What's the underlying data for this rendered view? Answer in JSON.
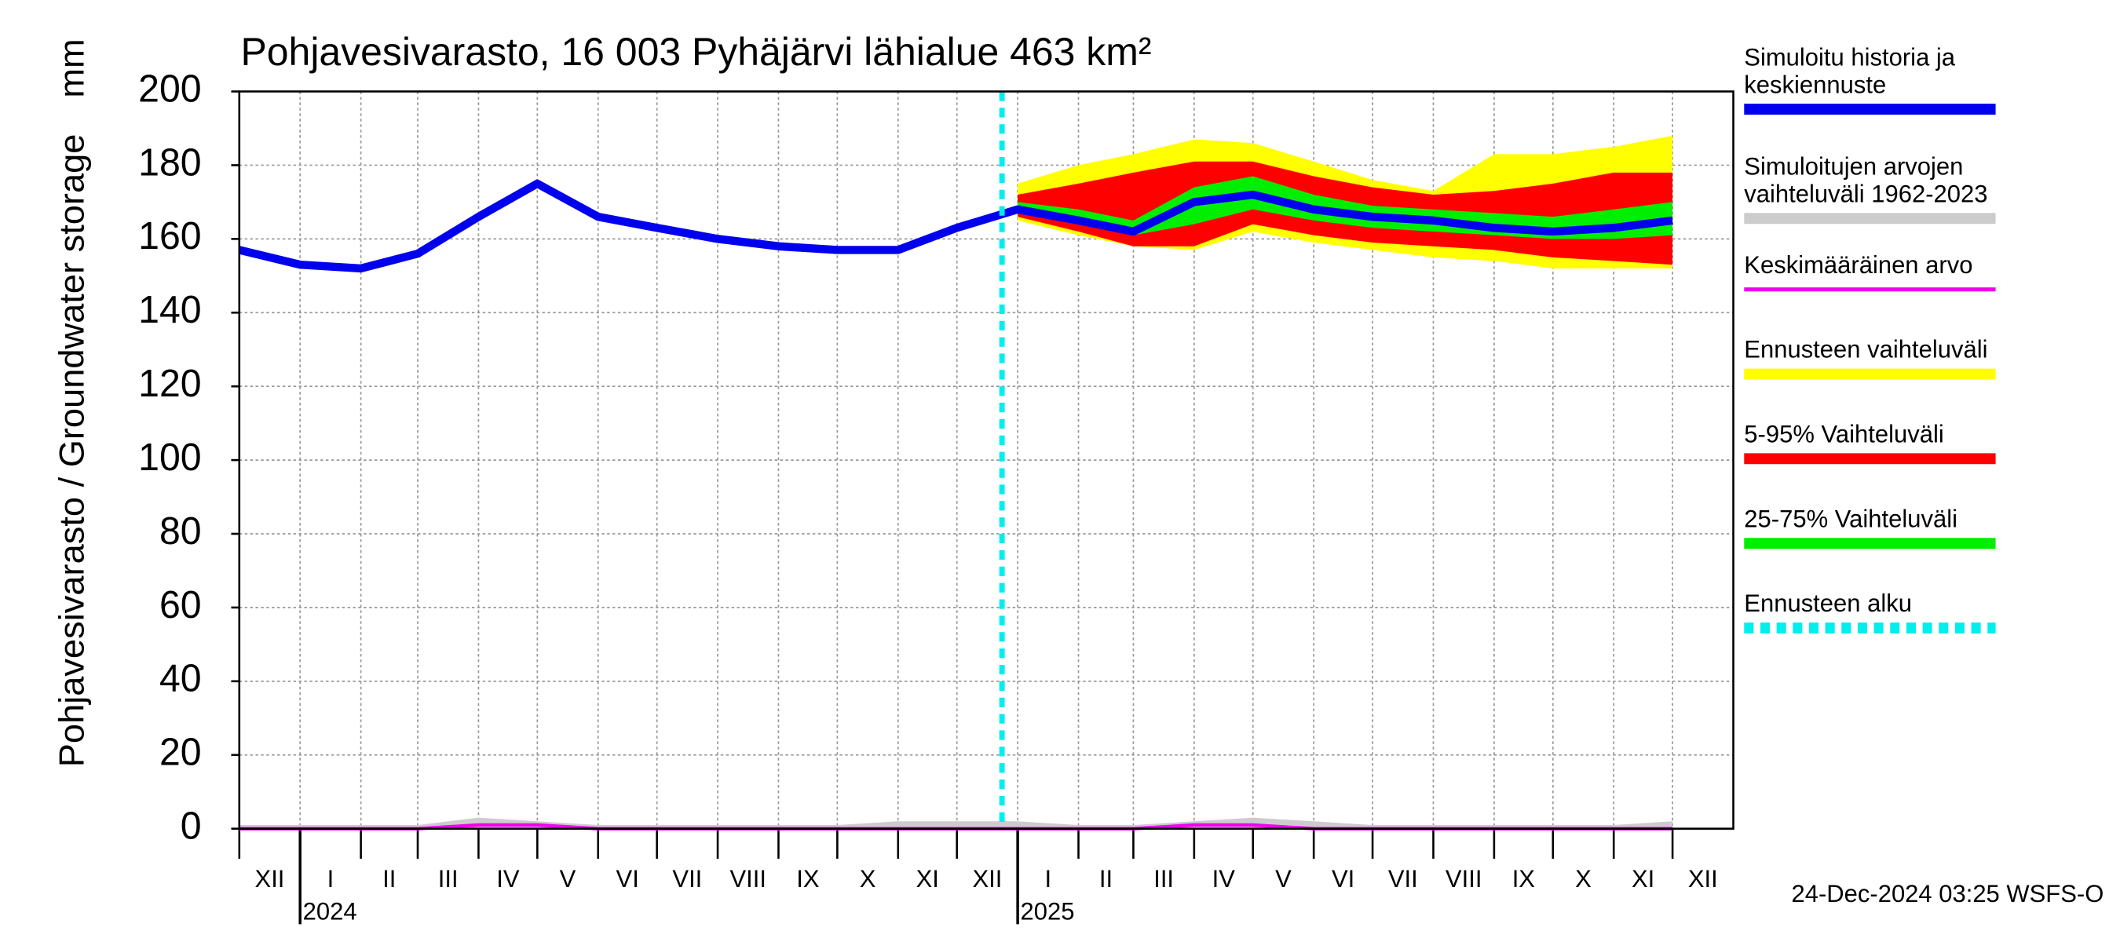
{
  "chart_data": {
    "type": "line",
    "title": "Pohjavesivarasto, 16 003 Pyhäjärvi lähialue 463 km²",
    "ylabel": "Pohjavesivarasto / Groundwater storage",
    "yunit": "mm",
    "footer": "24-Dec-2024 03:25 WSFS-O",
    "xlim": [
      "2023-12",
      "2026-01"
    ],
    "xticks": [
      {
        "value": "2023-12",
        "label": "XII"
      },
      {
        "value": "2024-01",
        "label": "I"
      },
      {
        "value": "2024-02",
        "label": "II"
      },
      {
        "value": "2024-03",
        "label": "III"
      },
      {
        "value": "2024-04",
        "label": "IV"
      },
      {
        "value": "2024-05",
        "label": "V"
      },
      {
        "value": "2024-06",
        "label": "VI"
      },
      {
        "value": "2024-07",
        "label": "VII"
      },
      {
        "value": "2024-08",
        "label": "VIII"
      },
      {
        "value": "2024-09",
        "label": "IX"
      },
      {
        "value": "2024-10",
        "label": "X"
      },
      {
        "value": "2024-11",
        "label": "XI"
      },
      {
        "value": "2024-12",
        "label": "XII"
      },
      {
        "value": "2025-01",
        "label": "I"
      },
      {
        "value": "2025-02",
        "label": "II"
      },
      {
        "value": "2025-03",
        "label": "III"
      },
      {
        "value": "2025-04",
        "label": "IV"
      },
      {
        "value": "2025-05",
        "label": "V"
      },
      {
        "value": "2025-06",
        "label": "VI"
      },
      {
        "value": "2025-07",
        "label": "VII"
      },
      {
        "value": "2025-08",
        "label": "VIII"
      },
      {
        "value": "2025-09",
        "label": "IX"
      },
      {
        "value": "2025-10",
        "label": "X"
      },
      {
        "value": "2025-11",
        "label": "XI"
      },
      {
        "value": "2025-12",
        "label": "XII"
      }
    ],
    "year_ticks": [
      {
        "value": "2024-01",
        "label": "2024"
      },
      {
        "value": "2025-01",
        "label": "2025"
      }
    ],
    "ylim": [
      0,
      200
    ],
    "yticks": [
      0,
      20,
      40,
      60,
      80,
      100,
      120,
      140,
      160,
      180,
      200
    ],
    "grid": true,
    "x": [
      "2023-12",
      "2024-01",
      "2024-02",
      "2024-03",
      "2024-04",
      "2024-05",
      "2024-06",
      "2024-07",
      "2024-08",
      "2024-09",
      "2024-10",
      "2024-11",
      "2024-12",
      "2025-01",
      "2025-02",
      "2025-03",
      "2025-04",
      "2025-05",
      "2025-06",
      "2025-07",
      "2025-08",
      "2025-09",
      "2025-10",
      "2025-11",
      "2025-12"
    ],
    "forecast_x": [
      "2025-01",
      "2025-02",
      "2025-03",
      "2025-04",
      "2025-05",
      "2025-06",
      "2025-07",
      "2025-08",
      "2025-09",
      "2025-10",
      "2025-11",
      "2025-12"
    ],
    "series": [
      {
        "name": "Simuloitu historia ja keskiennuste",
        "color": "#0000ee",
        "kind": "line",
        "values": [
          157,
          153,
          152,
          156,
          166,
          175,
          166,
          163,
          160,
          158,
          157,
          157,
          163,
          168,
          165,
          162,
          170,
          172,
          168,
          166,
          165,
          163,
          162,
          163,
          165
        ]
      },
      {
        "name": "Simuloitujen arvojen vaihteluväli 1962-2023",
        "color": "#cccccc",
        "kind": "band-all",
        "low": [
          0,
          0,
          0,
          0,
          0,
          0,
          0,
          0,
          0,
          0,
          0,
          0,
          0,
          0,
          0,
          0,
          0,
          0,
          0,
          0,
          0,
          0,
          0,
          0,
          0
        ],
        "high": [
          1,
          1,
          1,
          1,
          3,
          2,
          1,
          1,
          1,
          1,
          1,
          2,
          2,
          2,
          1,
          1,
          2,
          3,
          2,
          1,
          1,
          1,
          1,
          1,
          2
        ]
      },
      {
        "name": "Keskimääräinen arvo",
        "color": "#ee00ee",
        "kind": "line-thin",
        "values": [
          0,
          0,
          0,
          0,
          1,
          1,
          0,
          0,
          0,
          0,
          0,
          0,
          0,
          0,
          0,
          0,
          1,
          1,
          0,
          0,
          0,
          0,
          0,
          0,
          0
        ]
      },
      {
        "name": "Ennusteen vaihteluväli",
        "color": "#ffff00",
        "kind": "band",
        "low": [
          165,
          161,
          158,
          157,
          162,
          159,
          157,
          155,
          154,
          152,
          152,
          152
        ],
        "high": [
          175,
          180,
          183,
          187,
          186,
          181,
          176,
          173,
          183,
          183,
          185,
          188
        ]
      },
      {
        "name": "5-95% Vaihteluväli",
        "color": "#ff0000",
        "kind": "band",
        "low": [
          166,
          162,
          158,
          158,
          164,
          161,
          159,
          158,
          157,
          155,
          154,
          153
        ],
        "high": [
          172,
          175,
          178,
          181,
          181,
          177,
          174,
          172,
          173,
          175,
          178,
          178
        ]
      },
      {
        "name": "25-75% Vaihteluväli",
        "color": "#00ee00",
        "kind": "band",
        "low": [
          167,
          164,
          161,
          164,
          168,
          165,
          163,
          162,
          161,
          160,
          160,
          161
        ],
        "high": [
          170,
          168,
          165,
          174,
          177,
          172,
          169,
          168,
          167,
          166,
          168,
          170
        ]
      },
      {
        "name": "Ennusteen alku",
        "color": "#00eeee",
        "kind": "vline",
        "value": "2024-12-24"
      }
    ]
  }
}
